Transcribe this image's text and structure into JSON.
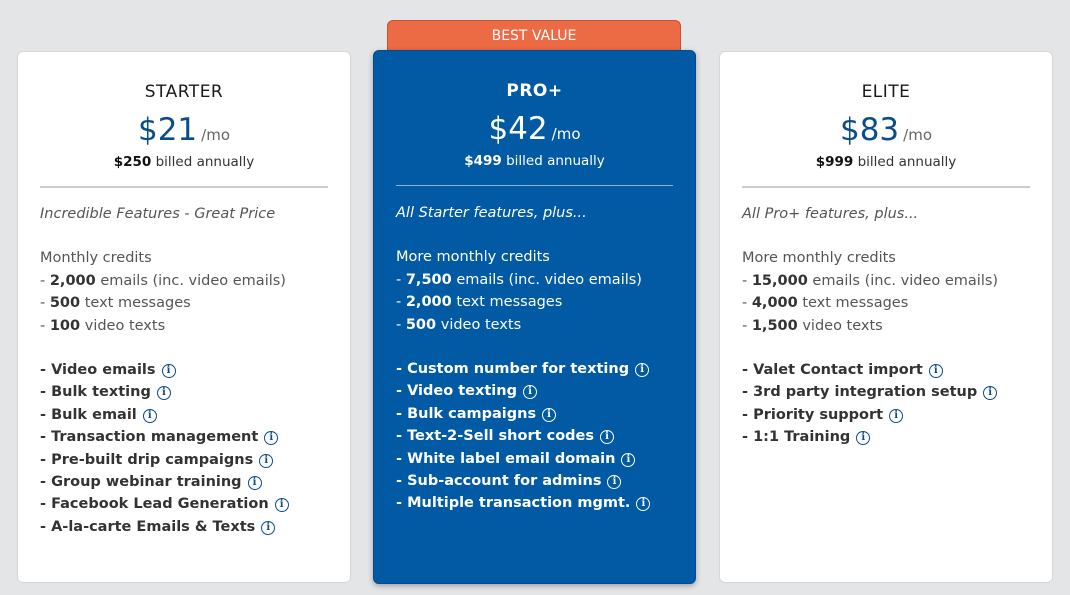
{
  "badge": "BEST VALUE",
  "plans": [
    {
      "title": "STARTER",
      "price": "$21",
      "per": "/mo",
      "billed_amount": "$250",
      "billed_text": "billed annually",
      "tagline": "Incredible Features - Great Price",
      "credits_heading": "Monthly credits",
      "credits": [
        {
          "num": "2,000",
          "text": "emails (inc. video emails)"
        },
        {
          "num": "500",
          "text": "text messages"
        },
        {
          "num": "100",
          "text": "video texts"
        }
      ],
      "features": [
        "Video emails",
        "Bulk texting",
        "Bulk email",
        "Transaction management",
        "Pre-built drip campaigns",
        "Group webinar training",
        "Facebook Lead Generation",
        "A-la-carte Emails & Texts"
      ]
    },
    {
      "title": "PRO+",
      "price": "$42",
      "per": "/mo",
      "billed_amount": "$499",
      "billed_text": "billed annually",
      "tagline": "All Starter features, plus...",
      "credits_heading": "More monthly credits",
      "credits": [
        {
          "num": "7,500",
          "text": "emails (inc. video emails)"
        },
        {
          "num": "2,000",
          "text": "text messages"
        },
        {
          "num": "500",
          "text": "video texts"
        }
      ],
      "features": [
        "Custom number for texting",
        "Video texting",
        "Bulk campaigns",
        "Text-2-Sell short codes",
        "White label email domain",
        "Sub-account for admins",
        "Multiple transaction mgmt."
      ]
    },
    {
      "title": "ELITE",
      "price": "$83",
      "per": "/mo",
      "billed_amount": "$999",
      "billed_text": "billed annually",
      "tagline": "All Pro+ features, plus...",
      "credits_heading": "More monthly credits",
      "credits": [
        {
          "num": "15,000",
          "text": "emails (inc. video emails)"
        },
        {
          "num": "4,000",
          "text": "text messages"
        },
        {
          "num": "1,500",
          "text": "video texts"
        }
      ],
      "features": [
        "Valet Contact import",
        "3rd party integration setup",
        "Priority support",
        "1:1 Training"
      ]
    }
  ],
  "info_glyph": "i",
  "dash": "- "
}
